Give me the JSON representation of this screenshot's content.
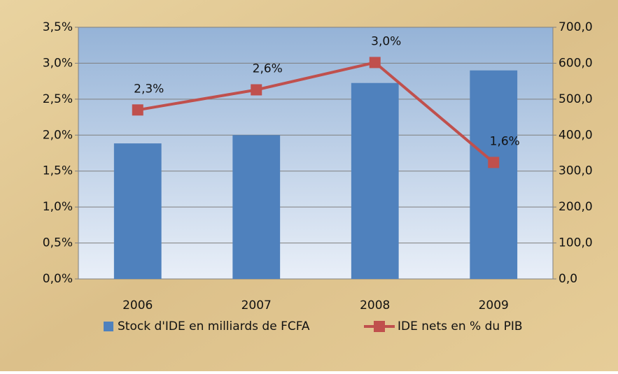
{
  "chart_data": {
    "type": "bar_line",
    "categories": [
      "2006",
      "2007",
      "2008",
      "2009"
    ],
    "series": [
      {
        "name": "Stock d'IDE en milliards de FCFA",
        "type": "bar",
        "color": "#4f81bd",
        "axis": "y2",
        "values": [
          377,
          400,
          545,
          580
        ]
      },
      {
        "name": "IDE nets en % du PIB",
        "type": "line",
        "color": "#c0504d",
        "axis": "y",
        "values": [
          2.35,
          2.63,
          3.01,
          1.62
        ],
        "value_labels": [
          "2,3%",
          "2,6%",
          "3,0%",
          "1,6%"
        ]
      }
    ],
    "ylim": [
      0,
      3.5
    ],
    "yticks": [
      {
        "value": 0,
        "label": "0,0%"
      },
      {
        "value": 0.5,
        "label": "0,5%"
      },
      {
        "value": 1,
        "label": "1,0%"
      },
      {
        "value": 1.5,
        "label": "1,5%"
      },
      {
        "value": 2,
        "label": "2,0%"
      },
      {
        "value": 2.5,
        "label": "2,5%"
      },
      {
        "value": 3,
        "label": "3,0%"
      },
      {
        "value": 3.5,
        "label": "3,5%"
      }
    ],
    "y2lim": [
      0,
      700
    ],
    "y2ticks": [
      {
        "value": 0,
        "label": "0,0"
      },
      {
        "value": 100,
        "label": "100,0"
      },
      {
        "value": 200,
        "label": "200,0"
      },
      {
        "value": 300,
        "label": "300,0"
      },
      {
        "value": 400,
        "label": "400,0"
      },
      {
        "value": 500,
        "label": "500,0"
      },
      {
        "value": 600,
        "label": "600,0"
      },
      {
        "value": 700,
        "label": "700,0"
      }
    ],
    "grid": true,
    "legend": "bottom"
  }
}
